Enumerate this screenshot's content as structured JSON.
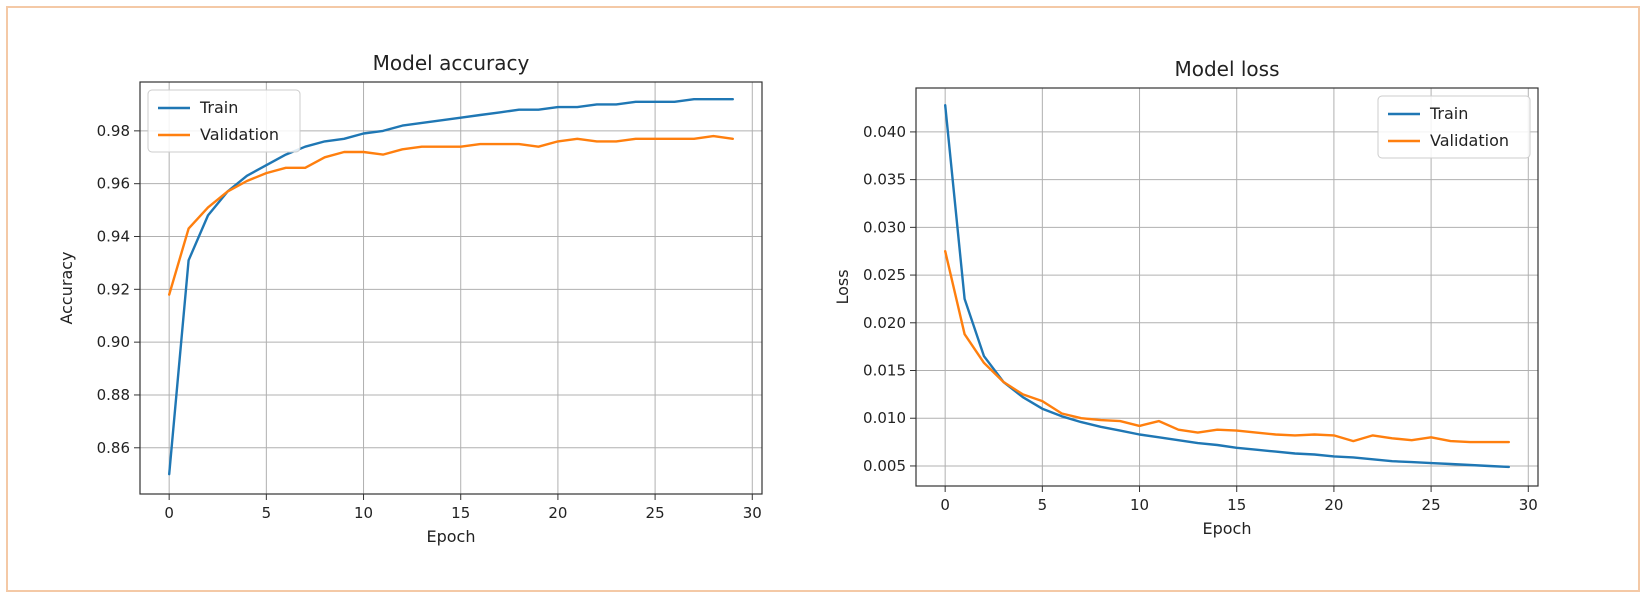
{
  "colors": {
    "train": "#1f77b4",
    "validation": "#ff7f0e",
    "frame_border": "#f4c9a6"
  },
  "chart_data": [
    {
      "type": "line",
      "title": "Model accuracy",
      "xlabel": "Epoch",
      "ylabel": "Accuracy",
      "xlim": [
        -1.5,
        30.5
      ],
      "ylim": [
        0.8425,
        0.9985
      ],
      "xticks": [
        0,
        5,
        10,
        15,
        20,
        25,
        30
      ],
      "yticks": [
        0.86,
        0.88,
        0.9,
        0.92,
        0.94,
        0.96,
        0.98
      ],
      "ytick_decimals": 2,
      "grid": true,
      "legend": "upper-left",
      "x": [
        0,
        1,
        2,
        3,
        4,
        5,
        6,
        7,
        8,
        9,
        10,
        11,
        12,
        13,
        14,
        15,
        16,
        17,
        18,
        19,
        20,
        21,
        22,
        23,
        24,
        25,
        26,
        27,
        28,
        29
      ],
      "series": [
        {
          "name": "Train",
          "color_key": "train",
          "values": [
            0.85,
            0.931,
            0.948,
            0.957,
            0.963,
            0.967,
            0.971,
            0.974,
            0.976,
            0.977,
            0.979,
            0.98,
            0.982,
            0.983,
            0.984,
            0.985,
            0.986,
            0.987,
            0.988,
            0.988,
            0.989,
            0.989,
            0.99,
            0.99,
            0.991,
            0.991,
            0.991,
            0.992,
            0.992,
            0.992
          ]
        },
        {
          "name": "Validation",
          "color_key": "validation",
          "values": [
            0.918,
            0.943,
            0.951,
            0.957,
            0.961,
            0.964,
            0.966,
            0.966,
            0.97,
            0.972,
            0.972,
            0.971,
            0.973,
            0.974,
            0.974,
            0.974,
            0.975,
            0.975,
            0.975,
            0.974,
            0.976,
            0.977,
            0.976,
            0.976,
            0.977,
            0.977,
            0.977,
            0.977,
            0.978,
            0.977
          ]
        }
      ]
    },
    {
      "type": "line",
      "title": "Model loss",
      "xlabel": "Epoch",
      "ylabel": "Loss",
      "xlim": [
        -1.5,
        30.5
      ],
      "ylim": [
        0.0029,
        0.0446
      ],
      "xticks": [
        0,
        5,
        10,
        15,
        20,
        25,
        30
      ],
      "yticks": [
        0.005,
        0.01,
        0.015,
        0.02,
        0.025,
        0.03,
        0.035,
        0.04
      ],
      "ytick_decimals": 3,
      "grid": true,
      "legend": "upper-right",
      "x": [
        0,
        1,
        2,
        3,
        4,
        5,
        6,
        7,
        8,
        9,
        10,
        11,
        12,
        13,
        14,
        15,
        16,
        17,
        18,
        19,
        20,
        21,
        22,
        23,
        24,
        25,
        26,
        27,
        28,
        29
      ],
      "series": [
        {
          "name": "Train",
          "color_key": "train",
          "values": [
            0.0428,
            0.0225,
            0.0165,
            0.0138,
            0.0122,
            0.011,
            0.0102,
            0.0096,
            0.0091,
            0.0087,
            0.0083,
            0.008,
            0.0077,
            0.0074,
            0.0072,
            0.0069,
            0.0067,
            0.0065,
            0.0063,
            0.0062,
            0.006,
            0.0059,
            0.0057,
            0.0055,
            0.0054,
            0.0053,
            0.0052,
            0.0051,
            0.005,
            0.0049
          ]
        },
        {
          "name": "Validation",
          "color_key": "validation",
          "values": [
            0.0275,
            0.0188,
            0.0158,
            0.0138,
            0.0125,
            0.0118,
            0.0105,
            0.01,
            0.0098,
            0.0097,
            0.0092,
            0.0097,
            0.0088,
            0.0085,
            0.0088,
            0.0087,
            0.0085,
            0.0083,
            0.0082,
            0.0083,
            0.0082,
            0.0076,
            0.0082,
            0.0079,
            0.0077,
            0.008,
            0.0076,
            0.0075,
            0.0075,
            0.0075
          ]
        }
      ]
    }
  ]
}
